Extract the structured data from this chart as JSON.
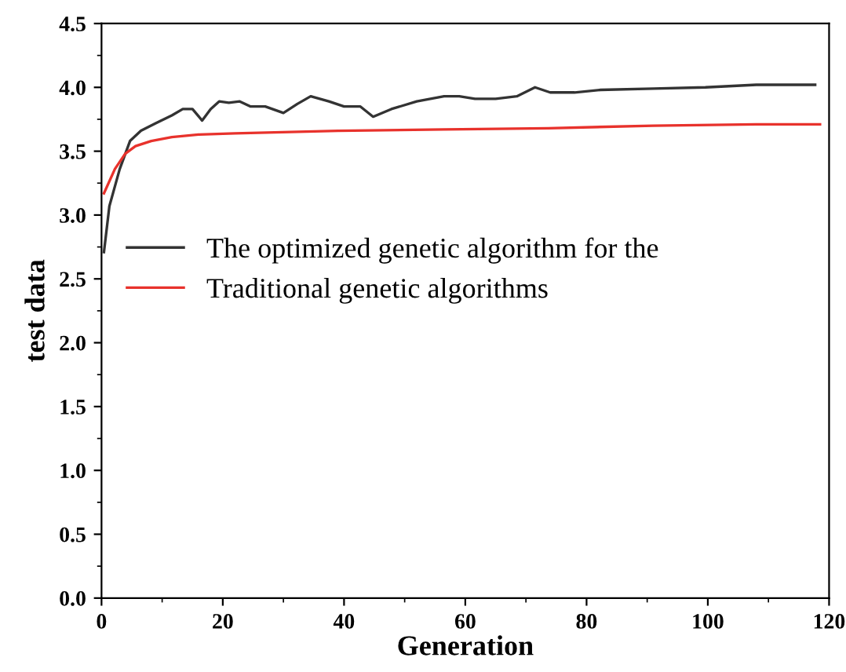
{
  "chart_data": {
    "type": "line",
    "xlabel": "Generation",
    "ylabel": "test data",
    "xlim": [
      0,
      120
    ],
    "ylim": [
      0,
      4.5
    ],
    "xticks": [
      0,
      20,
      40,
      60,
      80,
      100,
      120
    ],
    "yticks": [
      {
        "value": 0,
        "label": "0.0"
      },
      {
        "value": 0.5,
        "label": "0.5"
      },
      {
        "value": 1,
        "label": "1.0"
      },
      {
        "value": 1.5,
        "label": "1.5"
      },
      {
        "value": 2,
        "label": "2.0"
      },
      {
        "value": 2.5,
        "label": "2.5"
      },
      {
        "value": 3,
        "label": "3.0"
      },
      {
        "value": 3.5,
        "label": "3.5"
      },
      {
        "value": 4,
        "label": "4.0"
      },
      {
        "value": 4.5,
        "label": "4.5"
      }
    ],
    "legend": "left",
    "grid": false,
    "line_style": "solid",
    "series": [
      {
        "name": "The optimized genetic algorithm for the",
        "color": "#333333",
        "x": [
          0.4,
          1.3,
          3,
          4.7,
          6.5,
          9,
          11.6,
          13.4,
          15,
          16.6,
          18,
          19.4,
          21,
          22.8,
          24.6,
          27,
          30,
          32.3,
          34.5,
          37.5,
          40,
          42.7,
          44.8,
          47.8,
          52,
          56.5,
          59,
          61.6,
          65,
          68.5,
          71.5,
          74,
          78,
          82.3,
          91,
          99.6,
          108,
          117.7
        ],
        "values": [
          2.71,
          3.07,
          3.36,
          3.58,
          3.66,
          3.72,
          3.78,
          3.83,
          3.83,
          3.74,
          3.83,
          3.89,
          3.88,
          3.89,
          3.85,
          3.85,
          3.8,
          3.87,
          3.93,
          3.89,
          3.85,
          3.85,
          3.77,
          3.83,
          3.89,
          3.93,
          3.93,
          3.91,
          3.91,
          3.93,
          4.0,
          3.96,
          3.96,
          3.98,
          3.99,
          4.0,
          4.02,
          4.02
        ]
      },
      {
        "name": "Traditional genetic algorithms",
        "color": "#e8322c",
        "x": [
          0.4,
          2.2,
          3.9,
          5.6,
          8.2,
          11.6,
          16,
          22,
          39,
          56.5,
          73.7,
          91,
          108,
          118.5
        ],
        "values": [
          3.17,
          3.36,
          3.48,
          3.54,
          3.58,
          3.61,
          3.63,
          3.64,
          3.66,
          3.67,
          3.68,
          3.7,
          3.71,
          3.71
        ]
      }
    ]
  }
}
